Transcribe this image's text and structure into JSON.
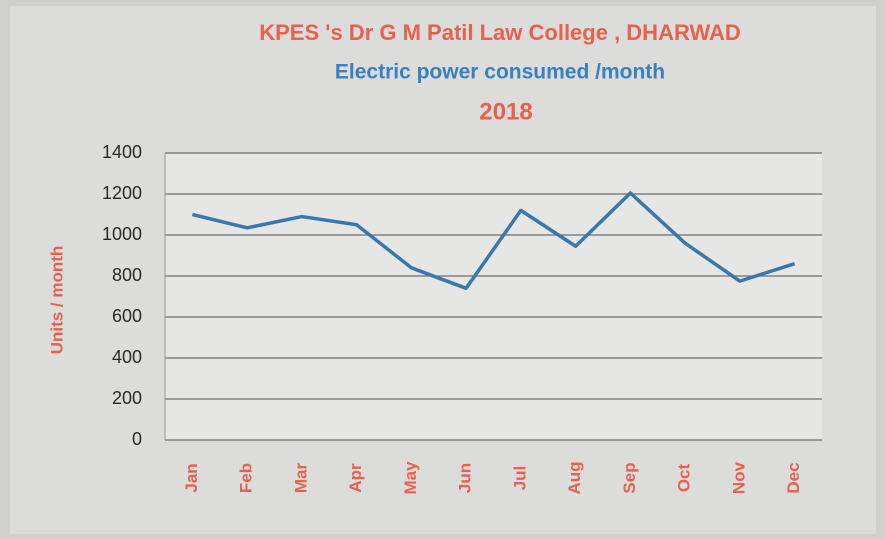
{
  "chart_data": {
    "type": "line",
    "title": "KPES 's Dr G M Patil Law College , DHARWAD",
    "subtitle": "Electric power consumed /month",
    "year": "2018",
    "title_color": "#e4624f",
    "subtitle_color": "#3a7fc0",
    "year_color": "#e4624f",
    "y_label": "Units  / month",
    "axis_label_color": "#e4624f",
    "categories": [
      "Jan",
      "Feb",
      "Mar",
      "Apr",
      "May",
      "Jun",
      "Jul",
      "Aug",
      "Sep",
      "Oct",
      "Nov",
      "Dec"
    ],
    "series": [
      {
        "name": "Units",
        "color": "#3a77ad",
        "values": [
          1100,
          1035,
          1090,
          1050,
          840,
          740,
          1120,
          945,
          1205,
          960,
          775,
          860
        ]
      }
    ],
    "ylim": [
      0,
      1400
    ],
    "yticks": [
      0,
      200,
      400,
      600,
      800,
      1000,
      1200,
      1400
    ],
    "grid": true,
    "legend": false
  }
}
